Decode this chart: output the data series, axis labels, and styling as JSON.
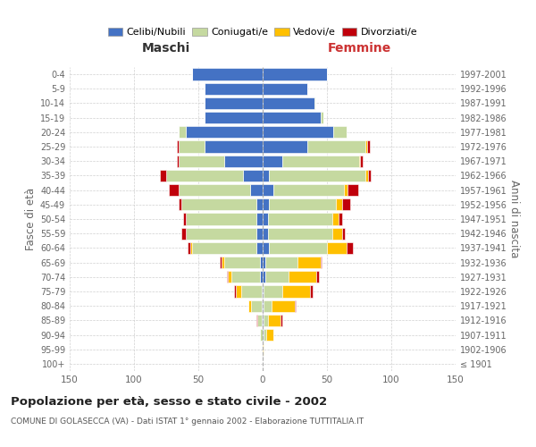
{
  "age_groups": [
    "100+",
    "95-99",
    "90-94",
    "85-89",
    "80-84",
    "75-79",
    "70-74",
    "65-69",
    "60-64",
    "55-59",
    "50-54",
    "45-49",
    "40-44",
    "35-39",
    "30-34",
    "25-29",
    "20-24",
    "15-19",
    "10-14",
    "5-9",
    "0-4"
  ],
  "birth_years": [
    "≤ 1901",
    "1902-1906",
    "1907-1911",
    "1912-1916",
    "1917-1921",
    "1922-1926",
    "1927-1931",
    "1932-1936",
    "1937-1941",
    "1942-1946",
    "1947-1951",
    "1952-1956",
    "1957-1961",
    "1962-1966",
    "1967-1971",
    "1972-1976",
    "1977-1981",
    "1982-1986",
    "1987-1991",
    "1992-1996",
    "1997-2001"
  ],
  "male": {
    "celibi": [
      0,
      0,
      0,
      1,
      1,
      1,
      2,
      2,
      5,
      5,
      5,
      5,
      10,
      15,
      30,
      45,
      60,
      45,
      45,
      45,
      55
    ],
    "coniugati": [
      0,
      0,
      2,
      3,
      8,
      16,
      22,
      28,
      50,
      55,
      55,
      58,
      55,
      60,
      35,
      20,
      5,
      0,
      0,
      0,
      0
    ],
    "vedovi": [
      0,
      0,
      0,
      0,
      2,
      4,
      3,
      2,
      1,
      0,
      0,
      0,
      0,
      0,
      0,
      0,
      0,
      0,
      0,
      0,
      0
    ],
    "divorziati": [
      0,
      0,
      0,
      1,
      0,
      1,
      1,
      1,
      2,
      3,
      2,
      2,
      8,
      5,
      2,
      2,
      0,
      0,
      0,
      0,
      0
    ]
  },
  "female": {
    "nubili": [
      0,
      0,
      1,
      1,
      1,
      1,
      2,
      2,
      5,
      4,
      4,
      5,
      8,
      5,
      15,
      35,
      55,
      45,
      40,
      35,
      50
    ],
    "coniugate": [
      0,
      0,
      2,
      3,
      6,
      14,
      18,
      25,
      45,
      50,
      50,
      52,
      55,
      75,
      60,
      45,
      10,
      2,
      1,
      0,
      0
    ],
    "vedove": [
      0,
      1,
      5,
      10,
      18,
      22,
      22,
      18,
      15,
      8,
      5,
      5,
      3,
      2,
      1,
      1,
      0,
      0,
      0,
      0,
      0
    ],
    "divorziate": [
      0,
      0,
      0,
      1,
      1,
      2,
      2,
      1,
      5,
      2,
      3,
      6,
      8,
      2,
      2,
      2,
      0,
      0,
      0,
      0,
      0
    ]
  },
  "colors": {
    "celibi": "#4472c4",
    "coniugati": "#c5d9a0",
    "vedovi": "#ffc000",
    "divorziati": "#c0000b"
  },
  "title": "Popolazione per età, sesso e stato civile - 2002",
  "subtitle": "COMUNE DI GOLASECCA (VA) - Dati ISTAT 1° gennaio 2002 - Elaborazione TUTTITALIA.IT",
  "xlabel_left": "Maschi",
  "xlabel_right": "Femmine",
  "ylabel_left": "Fasce di età",
  "ylabel_right": "Anni di nascita",
  "xlim": 150,
  "legend_labels": [
    "Celibi/Nubili",
    "Coniugati/e",
    "Vedovi/e",
    "Divorziati/e"
  ],
  "background_color": "#ffffff",
  "grid_color": "#cccccc"
}
